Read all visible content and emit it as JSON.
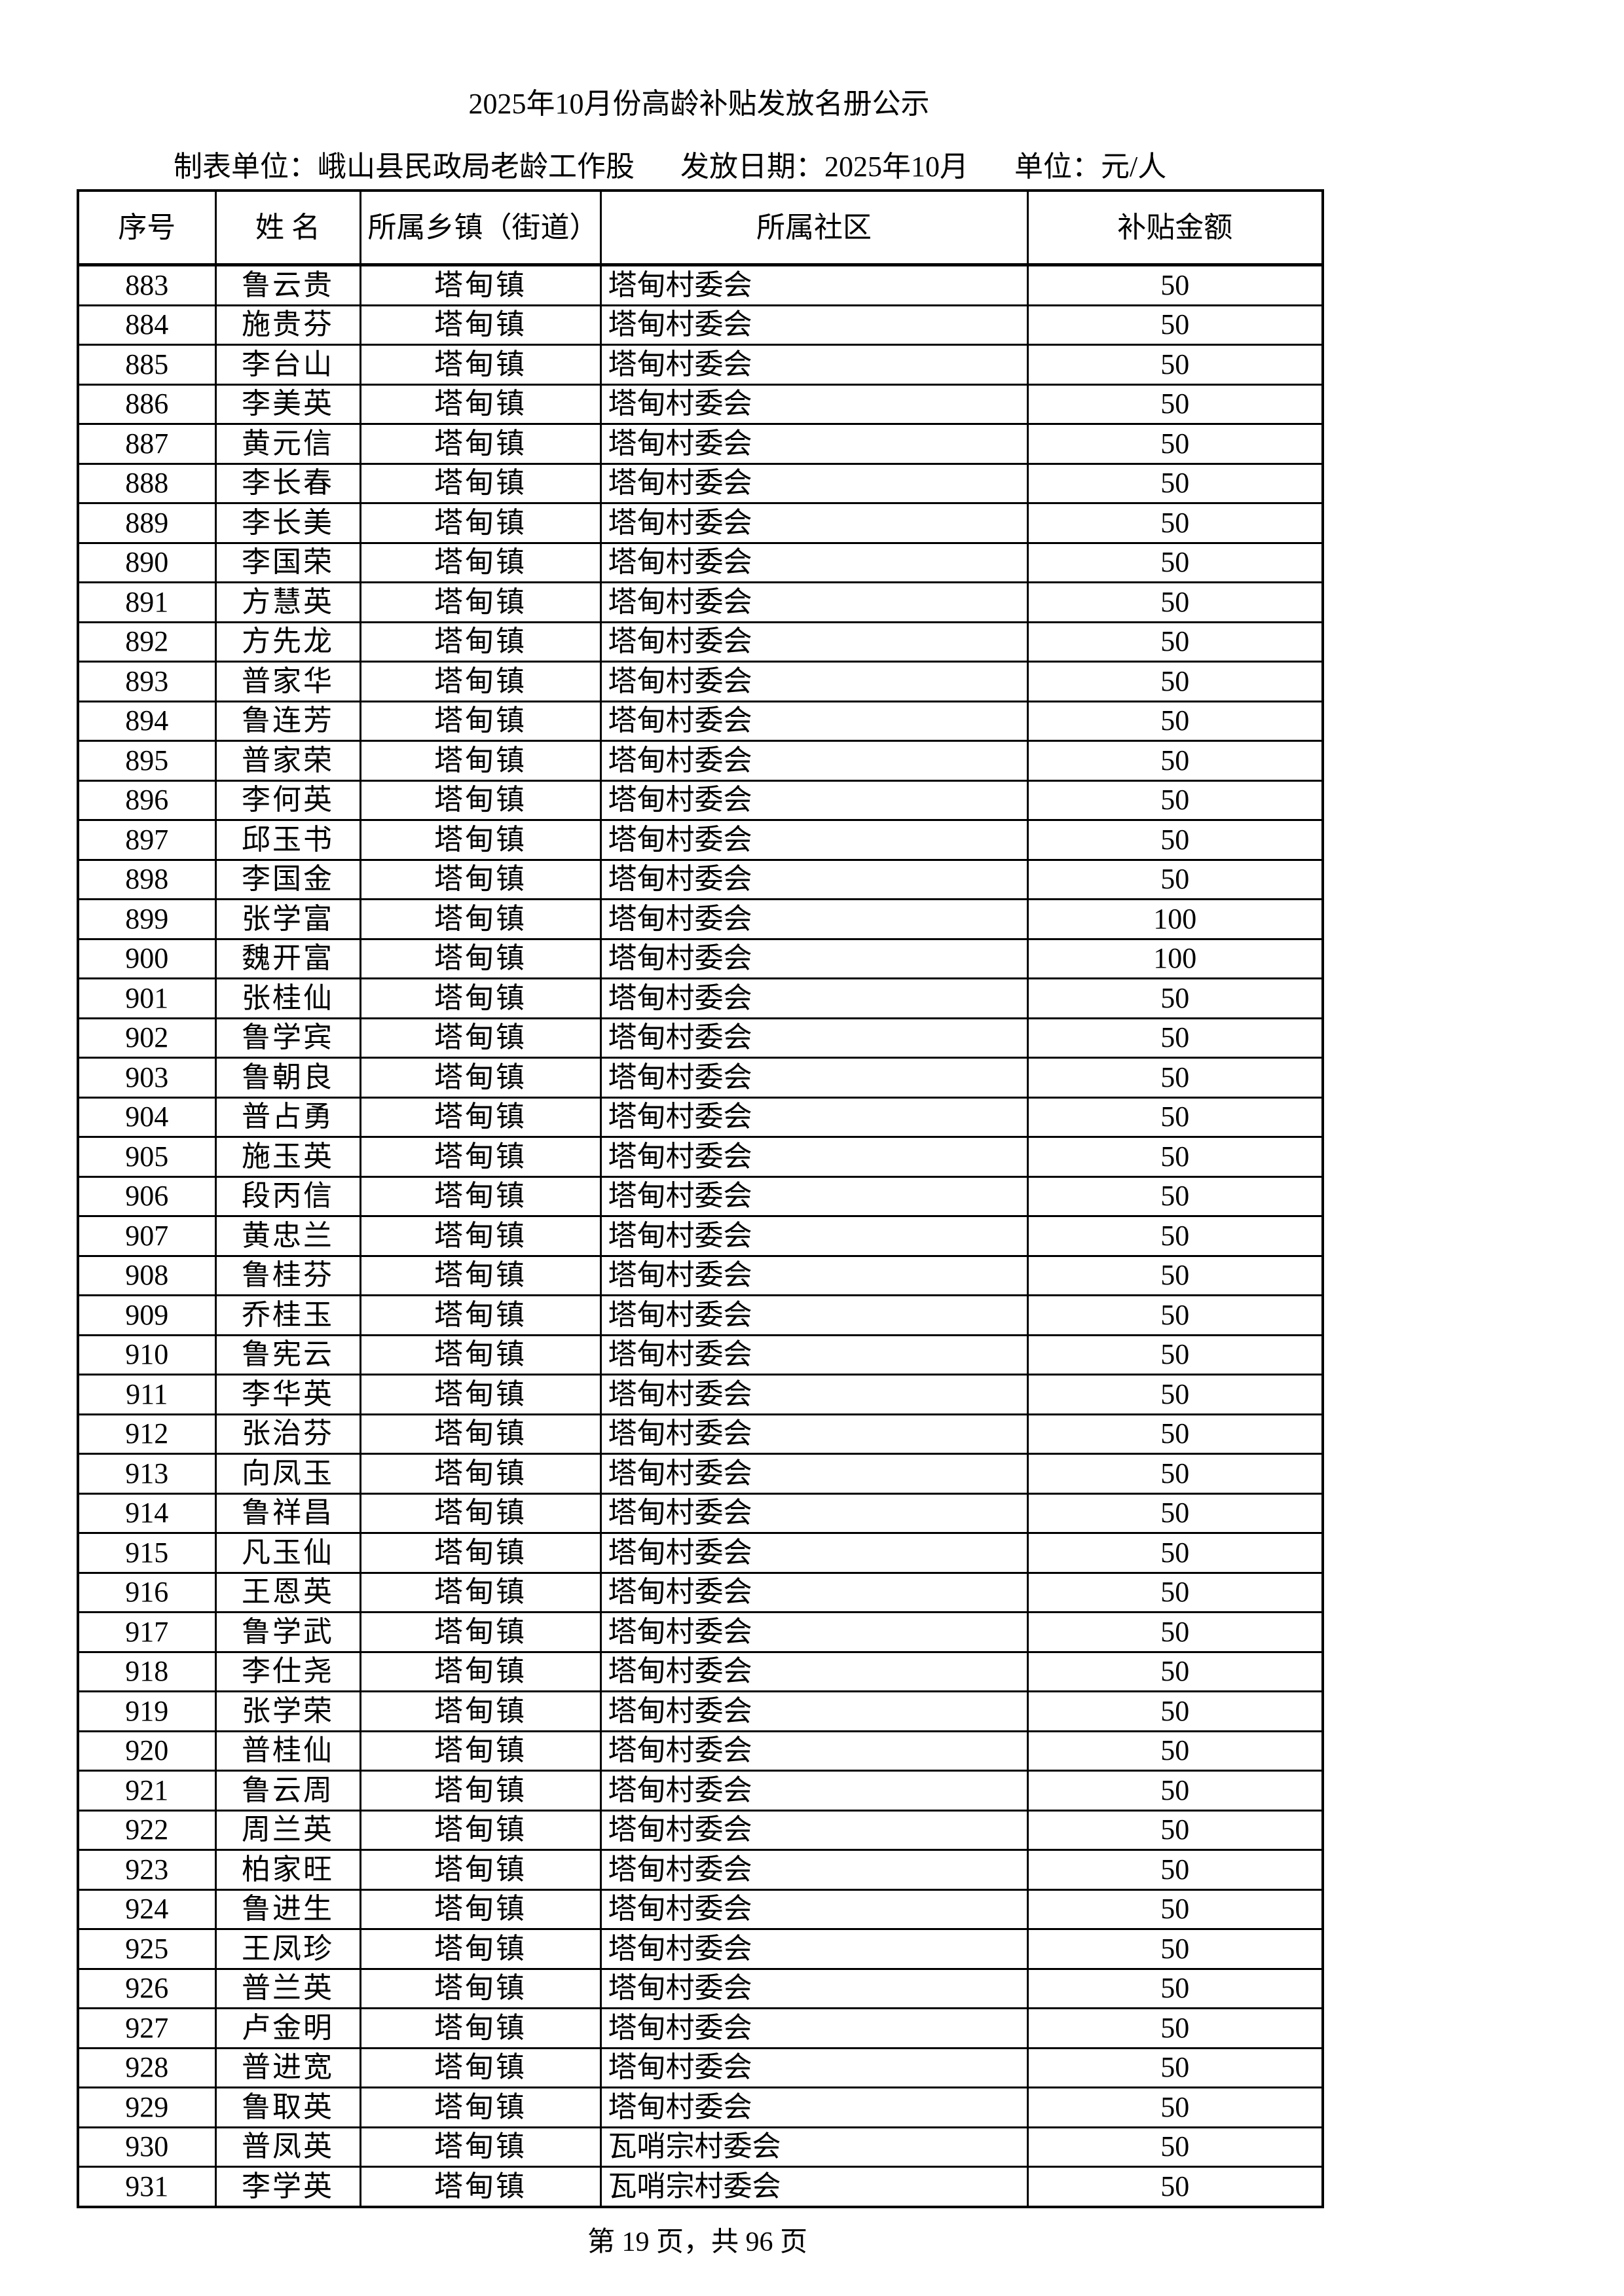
{
  "title": "2025年10月份高龄补贴发放名册公示",
  "meta": {
    "unit": "制表单位：峨山县民政局老龄工作股",
    "date": "发放日期：2025年10月",
    "currency": "单位：元/人"
  },
  "table": {
    "headers": [
      "序号",
      "姓 名",
      "所属乡镇（街道）",
      "所属社区",
      "补贴金额"
    ],
    "rows": [
      [
        "883",
        "鲁云贵",
        "塔甸镇",
        "塔甸村委会",
        "50"
      ],
      [
        "884",
        "施贵芬",
        "塔甸镇",
        "塔甸村委会",
        "50"
      ],
      [
        "885",
        "李台山",
        "塔甸镇",
        "塔甸村委会",
        "50"
      ],
      [
        "886",
        "李美英",
        "塔甸镇",
        "塔甸村委会",
        "50"
      ],
      [
        "887",
        "黄元信",
        "塔甸镇",
        "塔甸村委会",
        "50"
      ],
      [
        "888",
        "李长春",
        "塔甸镇",
        "塔甸村委会",
        "50"
      ],
      [
        "889",
        "李长美",
        "塔甸镇",
        "塔甸村委会",
        "50"
      ],
      [
        "890",
        "李国荣",
        "塔甸镇",
        "塔甸村委会",
        "50"
      ],
      [
        "891",
        "方慧英",
        "塔甸镇",
        "塔甸村委会",
        "50"
      ],
      [
        "892",
        "方先龙",
        "塔甸镇",
        "塔甸村委会",
        "50"
      ],
      [
        "893",
        "普家华",
        "塔甸镇",
        "塔甸村委会",
        "50"
      ],
      [
        "894",
        "鲁连芳",
        "塔甸镇",
        "塔甸村委会",
        "50"
      ],
      [
        "895",
        "普家荣",
        "塔甸镇",
        "塔甸村委会",
        "50"
      ],
      [
        "896",
        "李何英",
        "塔甸镇",
        "塔甸村委会",
        "50"
      ],
      [
        "897",
        "邱玉书",
        "塔甸镇",
        "塔甸村委会",
        "50"
      ],
      [
        "898",
        "李国金",
        "塔甸镇",
        "塔甸村委会",
        "50"
      ],
      [
        "899",
        "张学富",
        "塔甸镇",
        "塔甸村委会",
        "100"
      ],
      [
        "900",
        "魏开富",
        "塔甸镇",
        "塔甸村委会",
        "100"
      ],
      [
        "901",
        "张桂仙",
        "塔甸镇",
        "塔甸村委会",
        "50"
      ],
      [
        "902",
        "鲁学宾",
        "塔甸镇",
        "塔甸村委会",
        "50"
      ],
      [
        "903",
        "鲁朝良",
        "塔甸镇",
        "塔甸村委会",
        "50"
      ],
      [
        "904",
        "普占勇",
        "塔甸镇",
        "塔甸村委会",
        "50"
      ],
      [
        "905",
        "施玉英",
        "塔甸镇",
        "塔甸村委会",
        "50"
      ],
      [
        "906",
        "段丙信",
        "塔甸镇",
        "塔甸村委会",
        "50"
      ],
      [
        "907",
        "黄忠兰",
        "塔甸镇",
        "塔甸村委会",
        "50"
      ],
      [
        "908",
        "鲁桂芬",
        "塔甸镇",
        "塔甸村委会",
        "50"
      ],
      [
        "909",
        "乔桂玉",
        "塔甸镇",
        "塔甸村委会",
        "50"
      ],
      [
        "910",
        "鲁宪云",
        "塔甸镇",
        "塔甸村委会",
        "50"
      ],
      [
        "911",
        "李华英",
        "塔甸镇",
        "塔甸村委会",
        "50"
      ],
      [
        "912",
        "张治芬",
        "塔甸镇",
        "塔甸村委会",
        "50"
      ],
      [
        "913",
        "向凤玉",
        "塔甸镇",
        "塔甸村委会",
        "50"
      ],
      [
        "914",
        "鲁祥昌",
        "塔甸镇",
        "塔甸村委会",
        "50"
      ],
      [
        "915",
        "凡玉仙",
        "塔甸镇",
        "塔甸村委会",
        "50"
      ],
      [
        "916",
        "王恩英",
        "塔甸镇",
        "塔甸村委会",
        "50"
      ],
      [
        "917",
        "鲁学武",
        "塔甸镇",
        "塔甸村委会",
        "50"
      ],
      [
        "918",
        "李仕尧",
        "塔甸镇",
        "塔甸村委会",
        "50"
      ],
      [
        "919",
        "张学荣",
        "塔甸镇",
        "塔甸村委会",
        "50"
      ],
      [
        "920",
        "普桂仙",
        "塔甸镇",
        "塔甸村委会",
        "50"
      ],
      [
        "921",
        "鲁云周",
        "塔甸镇",
        "塔甸村委会",
        "50"
      ],
      [
        "922",
        "周兰英",
        "塔甸镇",
        "塔甸村委会",
        "50"
      ],
      [
        "923",
        "柏家旺",
        "塔甸镇",
        "塔甸村委会",
        "50"
      ],
      [
        "924",
        "鲁进生",
        "塔甸镇",
        "塔甸村委会",
        "50"
      ],
      [
        "925",
        "王凤珍",
        "塔甸镇",
        "塔甸村委会",
        "50"
      ],
      [
        "926",
        "普兰英",
        "塔甸镇",
        "塔甸村委会",
        "50"
      ],
      [
        "927",
        "卢金明",
        "塔甸镇",
        "塔甸村委会",
        "50"
      ],
      [
        "928",
        "普进宽",
        "塔甸镇",
        "塔甸村委会",
        "50"
      ],
      [
        "929",
        "鲁取英",
        "塔甸镇",
        "塔甸村委会",
        "50"
      ],
      [
        "930",
        "普凤英",
        "塔甸镇",
        "瓦哨宗村委会",
        "50"
      ],
      [
        "931",
        "李学英",
        "塔甸镇",
        "瓦哨宗村委会",
        "50"
      ]
    ]
  },
  "footer": "第 19 页，共 96 页"
}
